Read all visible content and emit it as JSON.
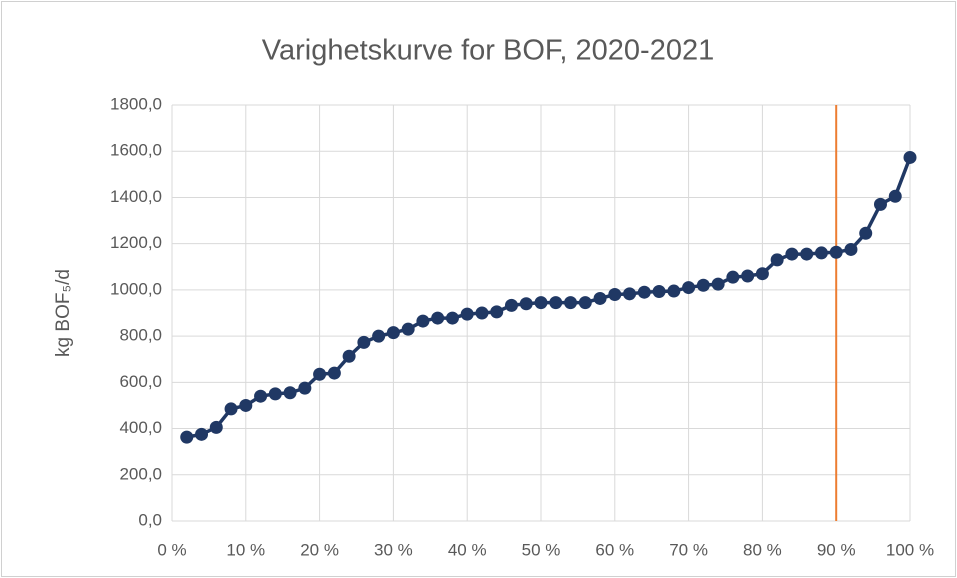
{
  "chart_data": {
    "type": "line",
    "title": "Varighetskurve for BOF, 2020-2021",
    "y_label": "kg BOF₅/d",
    "x": [
      2,
      4,
      6,
      8,
      10,
      12,
      14,
      16,
      18,
      20,
      22,
      24,
      26,
      28,
      30,
      32,
      34,
      36,
      38,
      40,
      42,
      44,
      46,
      48,
      50,
      52,
      54,
      56,
      58,
      60,
      62,
      64,
      66,
      68,
      70,
      72,
      74,
      76,
      78,
      80,
      82,
      84,
      86,
      88,
      90,
      92,
      94,
      96,
      98,
      100
    ],
    "series": [
      {
        "color": "#203864",
        "values": [
          363,
          375,
          405,
          485,
          500,
          540,
          550,
          555,
          575,
          635,
          640,
          713,
          773,
          800,
          815,
          830,
          865,
          878,
          878,
          895,
          900,
          905,
          933,
          940,
          945,
          945,
          945,
          945,
          963,
          980,
          983,
          990,
          993,
          995,
          1010,
          1020,
          1025,
          1055,
          1060,
          1070,
          1130,
          1155,
          1155,
          1160,
          1163,
          1175,
          1245,
          1370,
          1405,
          1573
        ]
      }
    ],
    "xlim": [
      0,
      100
    ],
    "xticks": [
      {
        "value": 0,
        "label": "0 %"
      },
      {
        "value": 10,
        "label": "10 %"
      },
      {
        "value": 20,
        "label": "20 %"
      },
      {
        "value": 30,
        "label": "30 %"
      },
      {
        "value": 40,
        "label": "40 %"
      },
      {
        "value": 50,
        "label": "50 %"
      },
      {
        "value": 60,
        "label": "60 %"
      },
      {
        "value": 70,
        "label": "70 %"
      },
      {
        "value": 80,
        "label": "80 %"
      },
      {
        "value": 90,
        "label": "90 %"
      },
      {
        "value": 100,
        "label": "100 %"
      }
    ],
    "ylim": [
      0,
      1800
    ],
    "yticks": [
      {
        "value": 0,
        "label": "0,0"
      },
      {
        "value": 200,
        "label": "200,0"
      },
      {
        "value": 400,
        "label": "400,0"
      },
      {
        "value": 600,
        "label": "600,0"
      },
      {
        "value": 800,
        "label": "800,0"
      },
      {
        "value": 1000,
        "label": "1000,0"
      },
      {
        "value": 1200,
        "label": "1200,0"
      },
      {
        "value": 1400,
        "label": "1400,0"
      },
      {
        "value": 1600,
        "label": "1600,0"
      },
      {
        "value": 1800,
        "label": "1800,0"
      }
    ],
    "grid": true,
    "vline": {
      "x": 90,
      "color": "#ed7d31"
    }
  }
}
